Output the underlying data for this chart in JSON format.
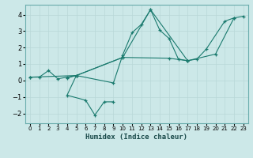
{
  "xlabel": "Humidex (Indice chaleur)",
  "ylabel": "",
  "bg_color": "#cce8e8",
  "line_color": "#1a7a6e",
  "marker": "+",
  "xlim": [
    -0.5,
    23.5
  ],
  "ylim": [
    -2.6,
    4.6
  ],
  "xticks": [
    0,
    1,
    2,
    3,
    4,
    5,
    6,
    7,
    8,
    9,
    10,
    11,
    12,
    13,
    14,
    15,
    16,
    17,
    18,
    19,
    20,
    21,
    22,
    23
  ],
  "yticks": [
    -2,
    -1,
    0,
    1,
    2,
    3,
    4
  ],
  "segments": [
    [
      [
        0,
        0.2
      ],
      [
        1,
        0.2
      ],
      [
        2,
        0.6
      ],
      [
        3,
        0.1
      ],
      [
        4,
        0.2
      ],
      [
        5,
        0.3
      ],
      [
        9,
        -0.15
      ],
      [
        10,
        1.55
      ],
      [
        11,
        2.9
      ],
      [
        12,
        3.4
      ],
      [
        13,
        4.3
      ],
      [
        14,
        3.05
      ],
      [
        15,
        2.55
      ],
      [
        16,
        1.3
      ],
      [
        17,
        1.2
      ]
    ],
    [
      [
        4,
        0.15
      ],
      [
        5,
        0.3
      ],
      [
        4,
        -0.9
      ],
      [
        6,
        -1.2
      ],
      [
        7,
        -2.1
      ],
      [
        8,
        -1.3
      ],
      [
        9,
        -1.3
      ]
    ],
    [
      [
        0,
        0.2
      ],
      [
        5,
        0.3
      ],
      [
        10,
        1.4
      ],
      [
        15,
        1.35
      ],
      [
        17,
        1.2
      ],
      [
        18,
        1.3
      ],
      [
        19,
        1.9
      ],
      [
        21,
        3.6
      ],
      [
        22,
        3.8
      ]
    ],
    [
      [
        5,
        0.3
      ],
      [
        10,
        1.4
      ],
      [
        13,
        4.3
      ],
      [
        17,
        1.2
      ],
      [
        20,
        1.6
      ],
      [
        22,
        3.8
      ],
      [
        23,
        3.9
      ]
    ]
  ]
}
